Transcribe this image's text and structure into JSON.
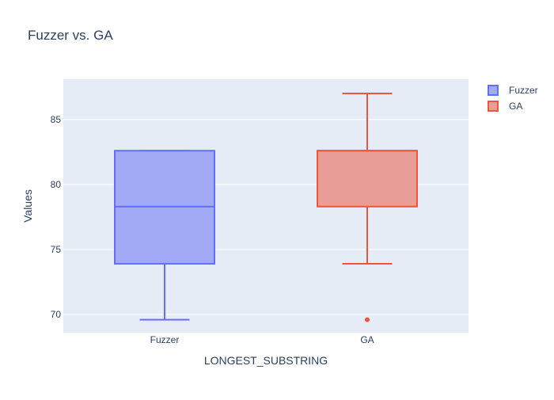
{
  "chart_data": {
    "type": "box",
    "title": "Fuzzer vs. GA",
    "xlabel": "LONGEST_SUBSTRING",
    "ylabel": "Values",
    "categories": [
      "Fuzzer",
      "GA"
    ],
    "ylim": [
      68.6,
      88.1
    ],
    "yticks": [
      70,
      75,
      80,
      85
    ],
    "grid": true,
    "legend_position": "top-right",
    "series": [
      {
        "name": "Fuzzer",
        "category": "Fuzzer",
        "color": "#636efa",
        "fill": "#a3aaf5",
        "whisker_low": 69.6,
        "q1": 73.9,
        "median": 78.3,
        "q3": 82.6,
        "whisker_high": 82.6,
        "outliers": []
      },
      {
        "name": "GA",
        "category": "GA",
        "color": "#ef553b",
        "fill": "#e89e97",
        "whisker_low": 73.9,
        "q1": 78.3,
        "median": 82.6,
        "q3": 82.6,
        "whisker_high": 87.0,
        "outliers": [
          69.6
        ]
      }
    ],
    "colors": {
      "plot_background": "#e5ecf6",
      "grid": "#ffffff",
      "text": "#2a3f5f"
    }
  }
}
